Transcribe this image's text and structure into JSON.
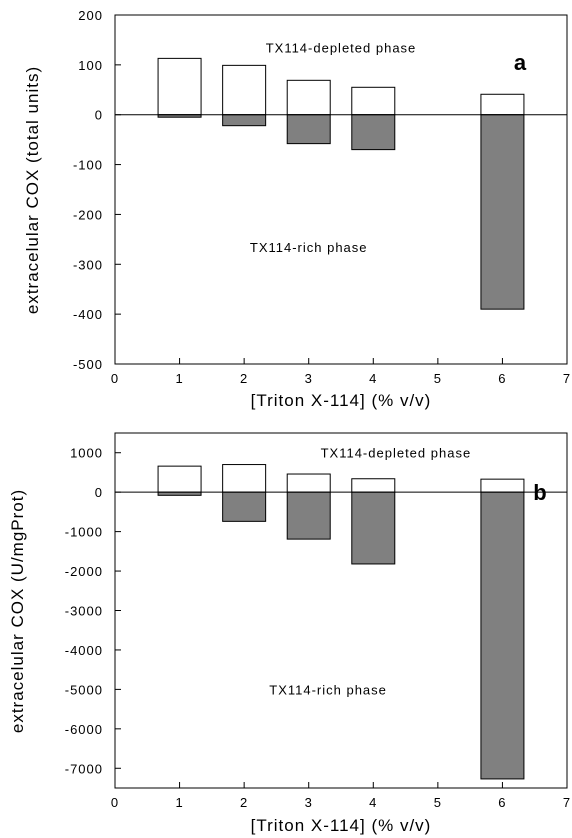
{
  "chart_data": [
    {
      "type": "bar",
      "panel_label": "a",
      "xlabel": "[Triton X-114] (% v/v)",
      "ylabel": "extracelular COX (total units)",
      "xlim": [
        0,
        7
      ],
      "ylim": [
        -500,
        200
      ],
      "xticks": [
        0,
        1,
        2,
        3,
        4,
        5,
        6,
        7
      ],
      "yticks": [
        200,
        100,
        0,
        -100,
        -200,
        -300,
        -400,
        -500
      ],
      "ytick_labels": [
        "200",
        "100",
        "0",
        "-100",
        "-200",
        "-300",
        "-400",
        "-500"
      ],
      "x": [
        1,
        2,
        3,
        4,
        6
      ],
      "series": [
        {
          "values": [
            113,
            99,
            69,
            55,
            41
          ],
          "fill": "#ffffff"
        },
        {
          "values": [
            -5,
            -22,
            -58,
            -70,
            -390
          ],
          "fill": "#808080"
        }
      ],
      "annotations": [
        {
          "text": "TX114-depleted phase",
          "x": 3.5,
          "y": 135
        },
        {
          "text": "TX114-rich phase",
          "x": 3.0,
          "y": -265
        }
      ],
      "zero_line": true
    },
    {
      "type": "bar",
      "panel_label": "b",
      "xlabel": "[Triton X-114] (% v/v)",
      "ylabel": "extracelular COX (U/mgProt)",
      "xlim": [
        0,
        7
      ],
      "ylim": [
        -7500,
        1500
      ],
      "xticks": [
        0,
        1,
        2,
        3,
        4,
        5,
        6,
        7
      ],
      "yticks": [
        1000,
        0,
        -1000,
        -2000,
        -3000,
        -4000,
        -5000,
        -6000,
        -7000
      ],
      "ytick_labels": [
        "1000",
        "0",
        "-1000",
        "-2000",
        "-3000",
        "-4000",
        "-5000",
        "-6000",
        "-7000"
      ],
      "x": [
        1,
        2,
        3,
        4,
        6
      ],
      "series": [
        {
          "values": [
            660,
            700,
            460,
            340,
            330
          ],
          "fill": "#ffffff"
        },
        {
          "values": [
            -80,
            -740,
            -1190,
            -1820,
            -7270
          ],
          "fill": "#808080"
        }
      ],
      "annotations": [
        {
          "text": "TX114-depleted phase",
          "x": 4.35,
          "y": 1000
        },
        {
          "text": "TX114-rich phase",
          "x": 3.3,
          "y": -5000
        }
      ],
      "zero_line": true
    }
  ]
}
